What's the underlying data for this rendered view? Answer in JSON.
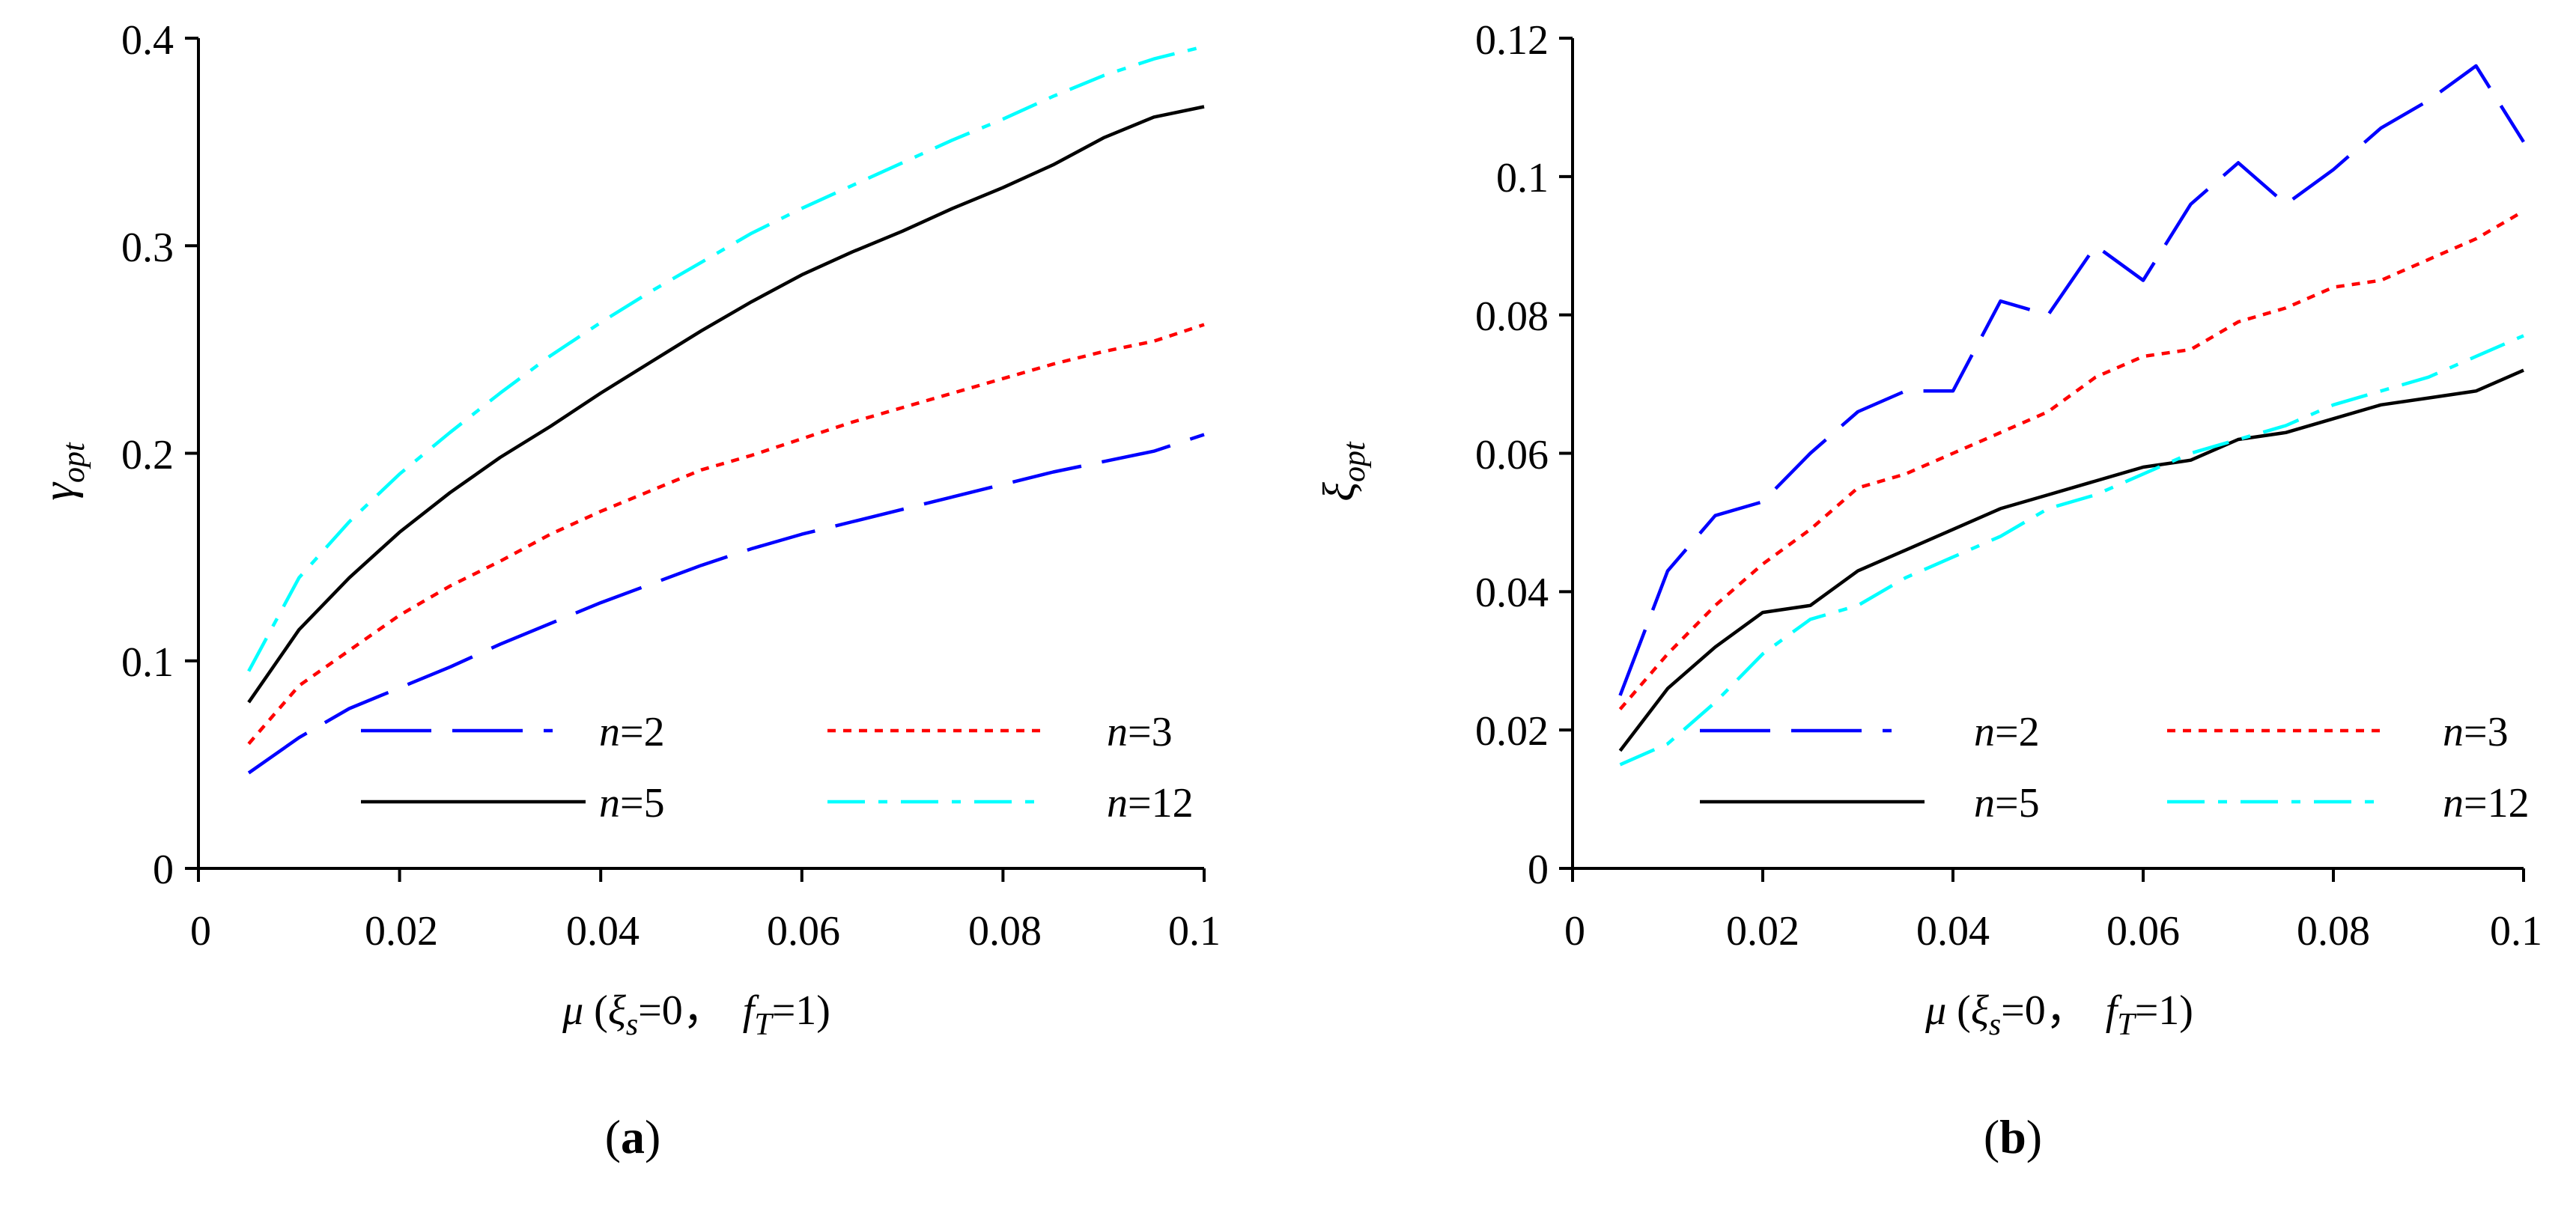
{
  "chart_data": [
    {
      "type": "line",
      "panel": "a",
      "caption": {
        "open": "(",
        "letter": "a",
        "close": ")"
      },
      "ylabel": {
        "main": "γ",
        "sub": "opt"
      },
      "xlabel": {
        "mu": "μ",
        "open": " (",
        "xi": "ξ",
        "xi_sub": "s",
        "eq0": "=0，",
        "f": "f",
        "f_sub": "T",
        "eq1": "=1)"
      },
      "xlim": [
        0,
        0.1
      ],
      "ylim": [
        0,
        0.4
      ],
      "xticks": [
        0,
        0.02,
        0.04,
        0.06,
        0.08,
        0.1
      ],
      "xtick_labels": [
        "0",
        "0.02",
        "0.04",
        "0.06",
        "0.08",
        "0.1"
      ],
      "yticks": [
        0,
        0.1,
        0.2,
        0.3,
        0.4
      ],
      "ytick_labels": [
        "0",
        "0.1",
        "0.2",
        "0.3",
        "0.4"
      ],
      "legend_position": "bottom-right",
      "x": [
        0.005,
        0.01,
        0.015,
        0.02,
        0.025,
        0.03,
        0.035,
        0.04,
        0.045,
        0.05,
        0.055,
        0.06,
        0.065,
        0.07,
        0.075,
        0.08,
        0.085,
        0.09,
        0.095,
        0.1
      ],
      "series": [
        {
          "name": "n=2",
          "n": "n",
          "eq": "=2",
          "color": "#0000ff",
          "style": "longdash",
          "values": [
            0.046,
            0.063,
            0.077,
            0.087,
            0.097,
            0.108,
            0.118,
            0.128,
            0.137,
            0.146,
            0.154,
            0.161,
            0.167,
            0.173,
            0.179,
            0.185,
            0.191,
            0.196,
            0.201,
            0.209
          ]
        },
        {
          "name": "n=3",
          "n": "n",
          "eq": "=3",
          "color": "#ff0000",
          "style": "dotted",
          "values": [
            0.06,
            0.088,
            0.105,
            0.122,
            0.136,
            0.148,
            0.161,
            0.172,
            0.182,
            0.192,
            0.199,
            0.207,
            0.215,
            0.222,
            0.229,
            0.236,
            0.243,
            0.249,
            0.254,
            0.262
          ]
        },
        {
          "name": "n=5",
          "n": "n",
          "eq": "=5",
          "color": "#000000",
          "style": "solid",
          "values": [
            0.08,
            0.115,
            0.14,
            0.162,
            0.181,
            0.198,
            0.213,
            0.229,
            0.244,
            0.259,
            0.273,
            0.286,
            0.297,
            0.307,
            0.318,
            0.328,
            0.339,
            0.352,
            0.362,
            0.367
          ]
        },
        {
          "name": "n=12",
          "n": "n",
          "eq": "=12",
          "color": "#00ffff",
          "style": "dashdot",
          "values": [
            0.095,
            0.14,
            0.167,
            0.19,
            0.21,
            0.229,
            0.247,
            0.263,
            0.278,
            0.292,
            0.306,
            0.318,
            0.329,
            0.34,
            0.351,
            0.361,
            0.372,
            0.382,
            0.39,
            0.396
          ]
        }
      ]
    },
    {
      "type": "line",
      "panel": "b",
      "caption": {
        "open": "(",
        "letter": "b",
        "close": ")"
      },
      "ylabel": {
        "main": "ξ",
        "sub": "opt"
      },
      "xlabel": {
        "mu": "μ",
        "open": " (",
        "xi": "ξ",
        "xi_sub": "s",
        "eq0": "=0，",
        "f": "f",
        "f_sub": "T",
        "eq1": "=1)"
      },
      "xlim": [
        0,
        0.1
      ],
      "ylim": [
        0,
        0.12
      ],
      "xticks": [
        0,
        0.02,
        0.04,
        0.06,
        0.08,
        0.1
      ],
      "xtick_labels": [
        "0",
        "0.02",
        "0.04",
        "0.06",
        "0.08",
        "0.1"
      ],
      "yticks": [
        0,
        0.02,
        0.04,
        0.06,
        0.08,
        0.1,
        0.12
      ],
      "ytick_labels": [
        "0",
        "0.02",
        "0.04",
        "0.06",
        "0.08",
        "0.1",
        "0.12"
      ],
      "legend_position": "bottom-right",
      "x": [
        0.005,
        0.01,
        0.015,
        0.02,
        0.025,
        0.03,
        0.035,
        0.04,
        0.045,
        0.05,
        0.055,
        0.06,
        0.065,
        0.07,
        0.075,
        0.08,
        0.085,
        0.09,
        0.095,
        0.1
      ],
      "series": [
        {
          "name": "n=2",
          "n": "n",
          "eq": "=2",
          "color": "#0000ff",
          "style": "longdash",
          "values": [
            0.025,
            0.043,
            0.051,
            0.053,
            0.06,
            0.066,
            0.069,
            0.069,
            0.082,
            0.08,
            0.09,
            0.085,
            0.096,
            0.102,
            0.096,
            0.101,
            0.107,
            0.111,
            0.116,
            0.105
          ]
        },
        {
          "name": "n=3",
          "n": "n",
          "eq": "=3",
          "color": "#ff0000",
          "style": "dotted",
          "values": [
            0.023,
            0.031,
            0.038,
            0.044,
            0.049,
            0.055,
            0.057,
            0.06,
            0.063,
            0.066,
            0.071,
            0.074,
            0.075,
            0.079,
            0.081,
            0.084,
            0.085,
            0.088,
            0.091,
            0.095
          ]
        },
        {
          "name": "n=5",
          "n": "n",
          "eq": "=5",
          "color": "#000000",
          "style": "solid",
          "values": [
            0.017,
            0.026,
            0.032,
            0.037,
            0.038,
            0.043,
            0.046,
            0.049,
            0.052,
            0.054,
            0.056,
            0.058,
            0.059,
            0.062,
            0.063,
            0.065,
            0.067,
            0.068,
            0.069,
            0.072
          ]
        },
        {
          "name": "n=12",
          "n": "n",
          "eq": "=12",
          "color": "#00ffff",
          "style": "dashdot",
          "values": [
            0.015,
            0.018,
            0.024,
            0.031,
            0.036,
            0.038,
            0.042,
            0.045,
            0.048,
            0.052,
            0.054,
            0.057,
            0.06,
            0.062,
            0.064,
            0.067,
            0.069,
            0.071,
            0.074,
            0.077
          ]
        }
      ]
    }
  ]
}
